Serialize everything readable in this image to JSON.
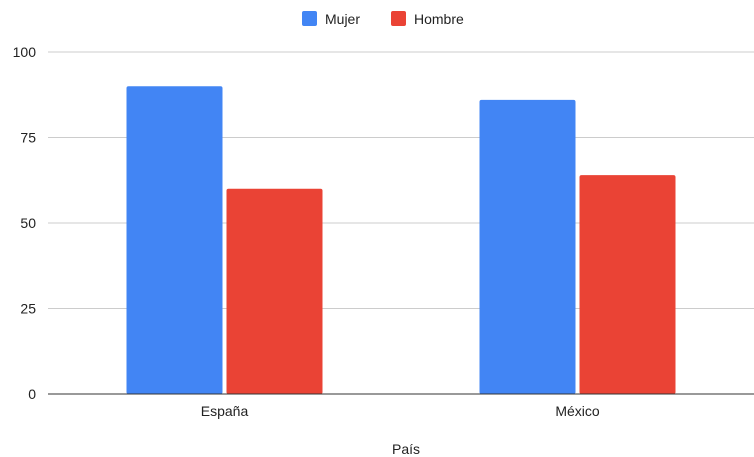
{
  "chart_data": {
    "type": "bar",
    "title": "",
    "xlabel": "País",
    "ylabel": "",
    "categories": [
      "España",
      "México"
    ],
    "series": [
      {
        "name": "Mujer",
        "values": [
          90,
          86
        ],
        "color": "#4285F4"
      },
      {
        "name": "Hombre",
        "values": [
          60,
          64
        ],
        "color": "#EA4335"
      }
    ],
    "ylim": [
      0,
      100
    ],
    "yticks": [
      "0",
      "25",
      "50",
      "75",
      "100"
    ],
    "grid": true,
    "legend_position": "top"
  }
}
